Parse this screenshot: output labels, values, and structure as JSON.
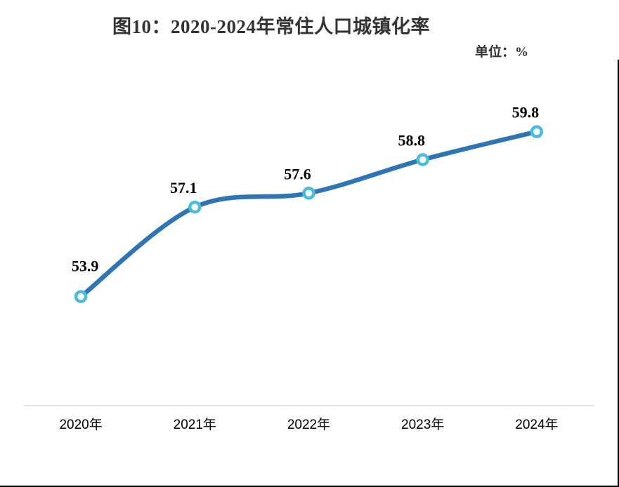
{
  "figure": {
    "title": "图10：2020-2024年常住人口城镇化率",
    "unit_label": "单位：%"
  },
  "chart_data": {
    "type": "line",
    "smooth": true,
    "title": "图10：2020-2024年常住人口城镇化率",
    "unit": "%",
    "categories": [
      "2020年",
      "2021年",
      "2022年",
      "2023年",
      "2024年"
    ],
    "series": [
      {
        "name": "常住人口城镇化率",
        "values": [
          53.9,
          57.1,
          57.6,
          58.8,
          59.8
        ]
      }
    ],
    "data_labels": [
      "53.9",
      "57.1",
      "57.6",
      "58.8",
      "59.8"
    ],
    "xlabel": "",
    "ylabel": "单位：%",
    "ylim": [
      50,
      63
    ],
    "grid": false,
    "legend_position": "none",
    "colors": {
      "line": "#2E75B6",
      "marker_ring": "#4CBCDB",
      "marker_fill": "#ffffff",
      "axis_line": "#D9D9D9",
      "label_text": "#000000",
      "title_text": "#333333",
      "page_border": "#000000"
    }
  }
}
